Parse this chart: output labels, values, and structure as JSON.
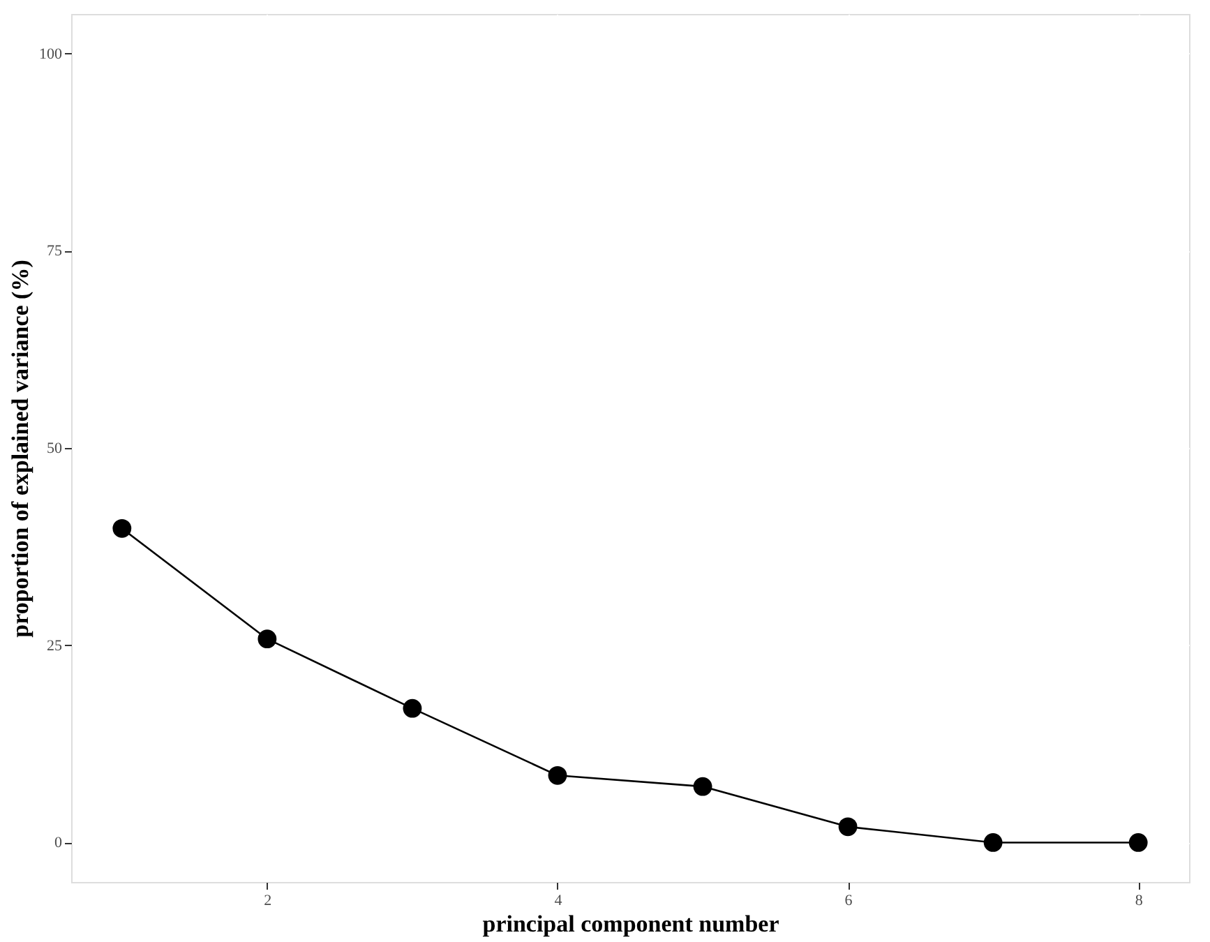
{
  "chart_data": {
    "type": "line",
    "xlabel": "principal component number",
    "ylabel": "proportion of explained variance (%)",
    "x": [
      1,
      2,
      3,
      4,
      5,
      6,
      7,
      8
    ],
    "series": [
      {
        "color": "#000000",
        "values": [
          39.8,
          25.8,
          17.0,
          8.5,
          7.1,
          2.0,
          0,
          0
        ]
      }
    ],
    "xlim": [
      0.65,
      8.35
    ],
    "ylim": [
      -5,
      105
    ],
    "xticks": [
      2,
      4,
      6,
      8
    ],
    "yticks": [
      0,
      25,
      50,
      75,
      100
    ],
    "grid": true,
    "marker": "circle",
    "line_style": "solid"
  }
}
